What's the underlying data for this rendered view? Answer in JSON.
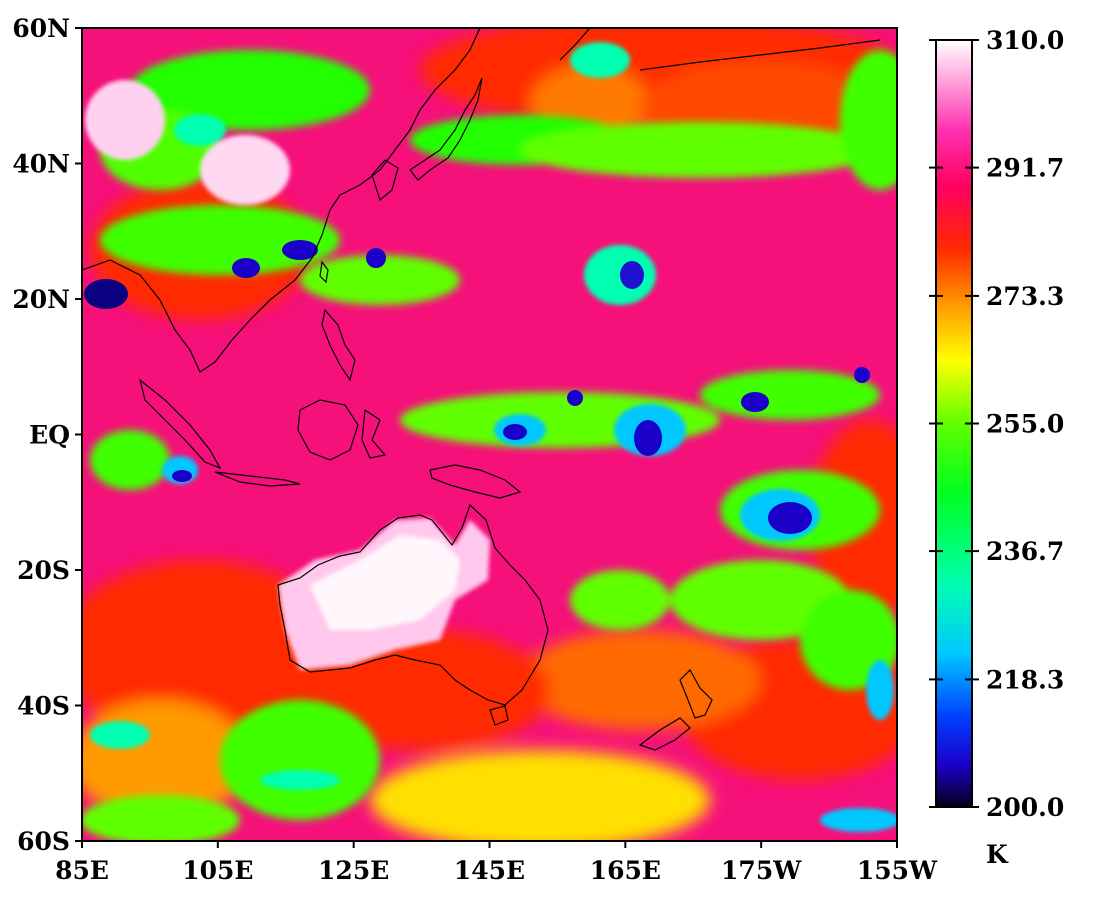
{
  "chart_data": {
    "type": "heatmap",
    "title": "",
    "variable_unit": "K",
    "x_axis": {
      "label": "",
      "ticks": [
        "85E",
        "105E",
        "125E",
        "145E",
        "165E",
        "175W",
        "155W"
      ],
      "range_degrees_east": [
        85,
        205
      ]
    },
    "y_axis": {
      "label": "",
      "ticks": [
        "60N",
        "40N",
        "20N",
        "EQ",
        "20S",
        "40S",
        "60S"
      ],
      "range_degrees_north": [
        60,
        -60
      ]
    },
    "colorbar": {
      "label": "K",
      "range": [
        200.0,
        310.0
      ],
      "ticks": [
        "310.0",
        "291.7",
        "273.3",
        "255.0",
        "236.7",
        "218.3",
        "200.0"
      ],
      "stops": [
        {
          "value": 200.0,
          "color": "#05001a"
        },
        {
          "value": 206.0,
          "color": "#1a00c8"
        },
        {
          "value": 213.0,
          "color": "#0040ff"
        },
        {
          "value": 222.0,
          "color": "#00c8ff"
        },
        {
          "value": 232.0,
          "color": "#00ffb0"
        },
        {
          "value": 245.0,
          "color": "#00ff20"
        },
        {
          "value": 255.0,
          "color": "#60ff00"
        },
        {
          "value": 264.0,
          "color": "#ffff00"
        },
        {
          "value": 272.0,
          "color": "#ff9a00"
        },
        {
          "value": 280.0,
          "color": "#ff2a00"
        },
        {
          "value": 289.0,
          "color": "#ff0060"
        },
        {
          "value": 297.0,
          "color": "#ff30b0"
        },
        {
          "value": 310.0,
          "color": "#ffffff"
        }
      ]
    },
    "grid": false
  },
  "colors": {
    "background_field": "#f5107a",
    "coastline": "#000000",
    "frame": "#000000"
  }
}
